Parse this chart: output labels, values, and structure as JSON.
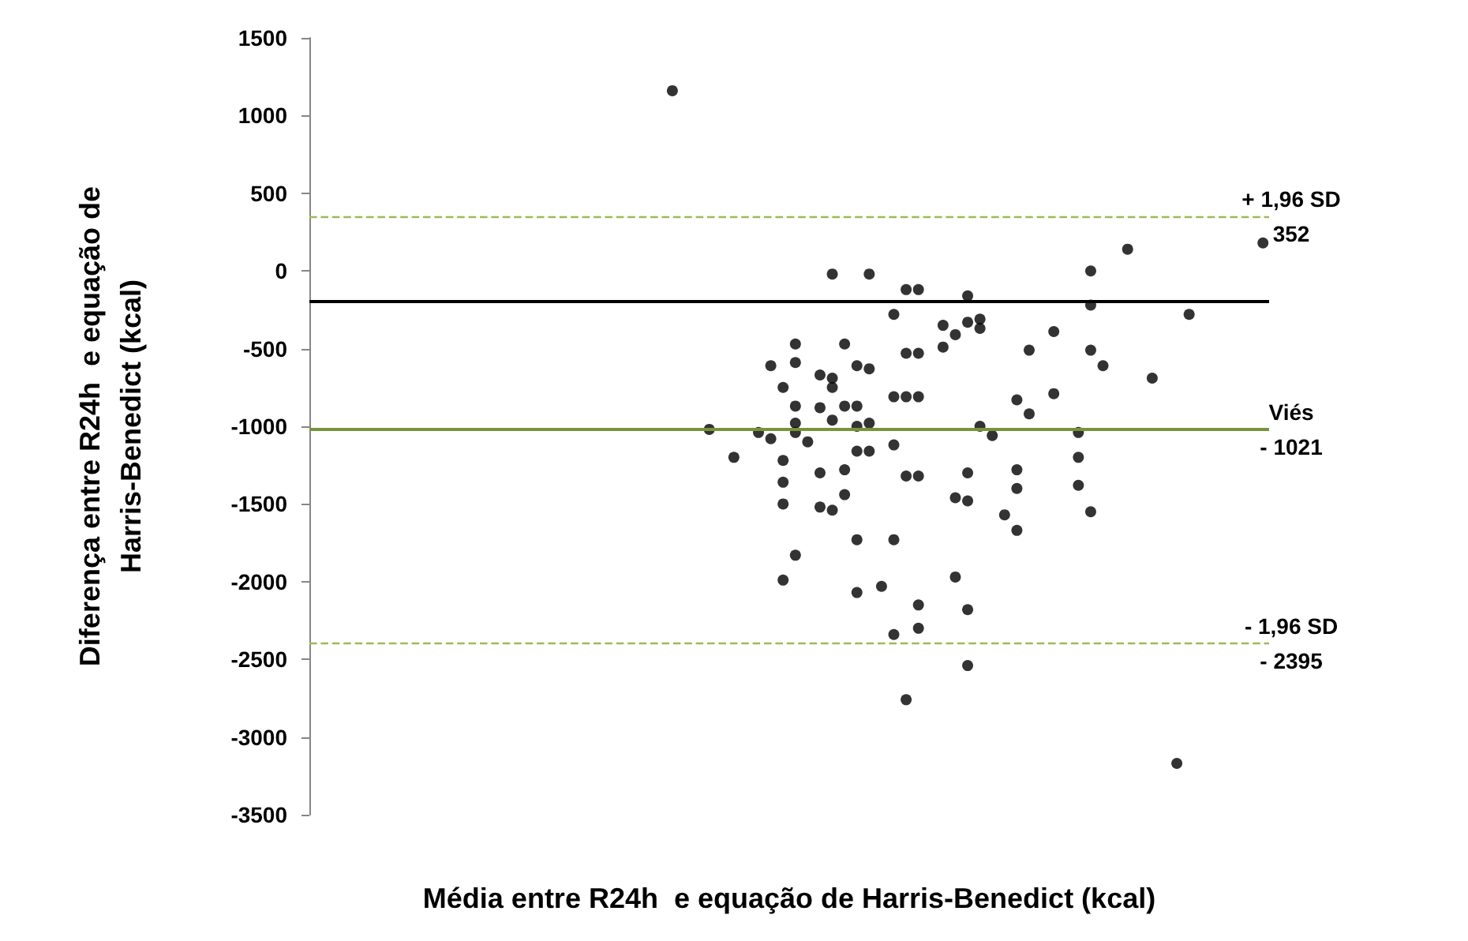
{
  "chart_data": {
    "type": "scatter",
    "xlabel": "Média entre R24h  e equação de Harris-Benedict (kcal)",
    "ylabel": "Diferença entre R24h  e equação de\nHarris-Benedict (kcal)",
    "marker": "circle",
    "tick_labels": "y",
    "ylim": [
      -3500,
      1500
    ],
    "yticks": [
      -3500,
      -3000,
      -2500,
      -2000,
      -1500,
      -1000,
      -500,
      0,
      500,
      1000,
      1500
    ],
    "categories": [
      null,
      null,
      null,
      null,
      null,
      null,
      null,
      null,
      null,
      null,
      null,
      null,
      null,
      null,
      null,
      null,
      null,
      null,
      null,
      null,
      null,
      null,
      null,
      null,
      null,
      null,
      null,
      null,
      null,
      null,
      null,
      null,
      null,
      null,
      null,
      null,
      null,
      null,
      null,
      null,
      null,
      null,
      null,
      null,
      null,
      null,
      null,
      null,
      null,
      null,
      null,
      null,
      null,
      null,
      null,
      null,
      null,
      null,
      null,
      null,
      null,
      null,
      null,
      null,
      null,
      null,
      null,
      null,
      null,
      null,
      null,
      null,
      null,
      null,
      null,
      null,
      null,
      null
    ],
    "series": [
      {
        "color": "#000000",
        "values": [
          null,
          null,
          null,
          null,
          null,
          null,
          null,
          null,
          null,
          null,
          null,
          null,
          null,
          null,
          null,
          null,
          null,
          null,
          null,
          null,
          null,
          null,
          null,
          null,
          null,
          null,
          null,
          null,
          null,
          1160,
          null,
          null,
          -1020,
          null,
          -1200,
          null,
          -1040,
          -610,
          -750,
          -470,
          -1100,
          -670,
          -20,
          -470,
          -610,
          -20,
          -2030,
          -280,
          -120,
          -530,
          null,
          -350,
          -410,
          -160,
          -310,
          -1060,
          -1570,
          -830,
          -510,
          null,
          -390,
          null,
          -1040,
          0,
          -610,
          null,
          140,
          null,
          -690,
          null,
          -3170,
          -280,
          null,
          null,
          null,
          null,
          null,
          180
        ]
      },
      {
        "color": "#000000",
        "values": [
          null,
          null,
          null,
          null,
          null,
          null,
          null,
          null,
          null,
          null,
          null,
          null,
          null,
          null,
          null,
          null,
          null,
          null,
          null,
          null,
          null,
          null,
          null,
          null,
          null,
          null,
          null,
          null,
          null,
          null,
          null,
          null,
          null,
          null,
          null,
          null,
          null,
          -1080,
          -1220,
          -590,
          null,
          null,
          -750,
          -870,
          -870,
          -630,
          null,
          -810,
          null,
          -1320,
          null,
          -490,
          -1460,
          -330,
          -370,
          null,
          null,
          -1280,
          -920,
          null,
          -790,
          null,
          -1200,
          -220,
          null,
          null,
          null,
          null,
          null,
          null,
          null,
          null,
          null,
          null,
          null,
          null,
          null,
          null
        ]
      },
      {
        "color": "#000000",
        "values": [
          null,
          null,
          null,
          null,
          null,
          null,
          null,
          null,
          null,
          null,
          null,
          null,
          null,
          null,
          null,
          null,
          null,
          null,
          null,
          null,
          null,
          null,
          null,
          null,
          null,
          null,
          null,
          null,
          null,
          null,
          null,
          null,
          null,
          null,
          null,
          null,
          null,
          null,
          -1360,
          -870,
          null,
          -880,
          -960,
          -1280,
          -1000,
          -980,
          null,
          -1120,
          -530,
          -2150,
          null,
          null,
          -1970,
          -1300,
          -1000,
          null,
          null,
          -1400,
          null,
          null,
          null,
          null,
          -1380,
          -510,
          null,
          null,
          null,
          null,
          null,
          null,
          null,
          null,
          null,
          null,
          null,
          null,
          null,
          null
        ]
      },
      {
        "color": "#000000",
        "values": [
          null,
          null,
          null,
          null,
          null,
          null,
          null,
          null,
          null,
          null,
          null,
          null,
          null,
          null,
          null,
          null,
          null,
          null,
          null,
          null,
          null,
          null,
          null,
          null,
          null,
          null,
          null,
          null,
          null,
          null,
          null,
          null,
          null,
          null,
          null,
          null,
          null,
          null,
          -1500,
          -1040,
          null,
          -1300,
          -1540,
          -1440,
          -1160,
          -1160,
          null,
          -1730,
          -810,
          -2300,
          null,
          null,
          null,
          -1480,
          null,
          null,
          null,
          -1670,
          null,
          null,
          null,
          null,
          null,
          -1550,
          null,
          null,
          null,
          null,
          null,
          null,
          null,
          null,
          null,
          null,
          null,
          null,
          null,
          null
        ]
      },
      {
        "color": "#000000",
        "values": [
          null,
          null,
          null,
          null,
          null,
          null,
          null,
          null,
          null,
          null,
          null,
          null,
          null,
          null,
          null,
          null,
          null,
          null,
          null,
          null,
          null,
          null,
          null,
          null,
          null,
          null,
          null,
          null,
          null,
          null,
          null,
          null,
          null,
          null,
          null,
          null,
          null,
          null,
          -1990,
          -980,
          null,
          -1520,
          -690,
          null,
          -1730,
          null,
          null,
          -2340,
          null,
          -120,
          null,
          null,
          null,
          -2180,
          null,
          null,
          null,
          null,
          null,
          null,
          null,
          null,
          null,
          null,
          null,
          null,
          null,
          null,
          null,
          null,
          null,
          null,
          null,
          null,
          null,
          null,
          null,
          null
        ]
      },
      {
        "color": "#000000",
        "values": [
          null,
          null,
          null,
          null,
          null,
          null,
          null,
          null,
          null,
          null,
          null,
          null,
          null,
          null,
          null,
          null,
          null,
          null,
          null,
          null,
          null,
          null,
          null,
          null,
          null,
          null,
          null,
          null,
          null,
          null,
          null,
          null,
          null,
          null,
          null,
          null,
          null,
          null,
          null,
          -1830,
          null,
          null,
          null,
          null,
          -2070,
          null,
          null,
          null,
          -1320,
          -810,
          null,
          null,
          null,
          -2540,
          null,
          null,
          null,
          null,
          null,
          null,
          null,
          null,
          null,
          null,
          null,
          null,
          null,
          null,
          null,
          null,
          null,
          null,
          null,
          null,
          null,
          null,
          null,
          null
        ]
      },
      {
        "color": "#000000",
        "values": [
          null,
          null,
          null,
          null,
          null,
          null,
          null,
          null,
          null,
          null,
          null,
          null,
          null,
          null,
          null,
          null,
          null,
          null,
          null,
          null,
          null,
          null,
          null,
          null,
          null,
          null,
          null,
          null,
          null,
          null,
          null,
          null,
          null,
          null,
          null,
          null,
          null,
          null,
          null,
          null,
          null,
          null,
          null,
          null,
          null,
          null,
          null,
          null,
          -2760,
          null,
          null,
          null,
          null,
          null,
          null,
          null,
          null,
          null,
          null,
          null,
          null,
          null,
          null,
          null,
          null,
          null,
          null,
          null,
          null,
          null,
          null,
          null,
          null,
          null,
          null,
          null,
          null,
          null
        ]
      }
    ],
    "ref_lines": [
      {
        "axis": "y",
        "value": -190,
        "color": "#000000",
        "line_style": "solid"
      },
      {
        "axis": "y",
        "value": 352,
        "label": "+ 1,96 SD\n352",
        "color": "#9bbb59",
        "line_style": "dashed"
      },
      {
        "axis": "y",
        "value": -1021,
        "label": "Viés\n- 1021",
        "color": "#77933c",
        "line_style": "solid"
      },
      {
        "axis": "y",
        "value": -2395,
        "label": "- 1,96 SD\n- 2395",
        "color": "#9bbb59",
        "line_style": "dashed"
      }
    ]
  }
}
